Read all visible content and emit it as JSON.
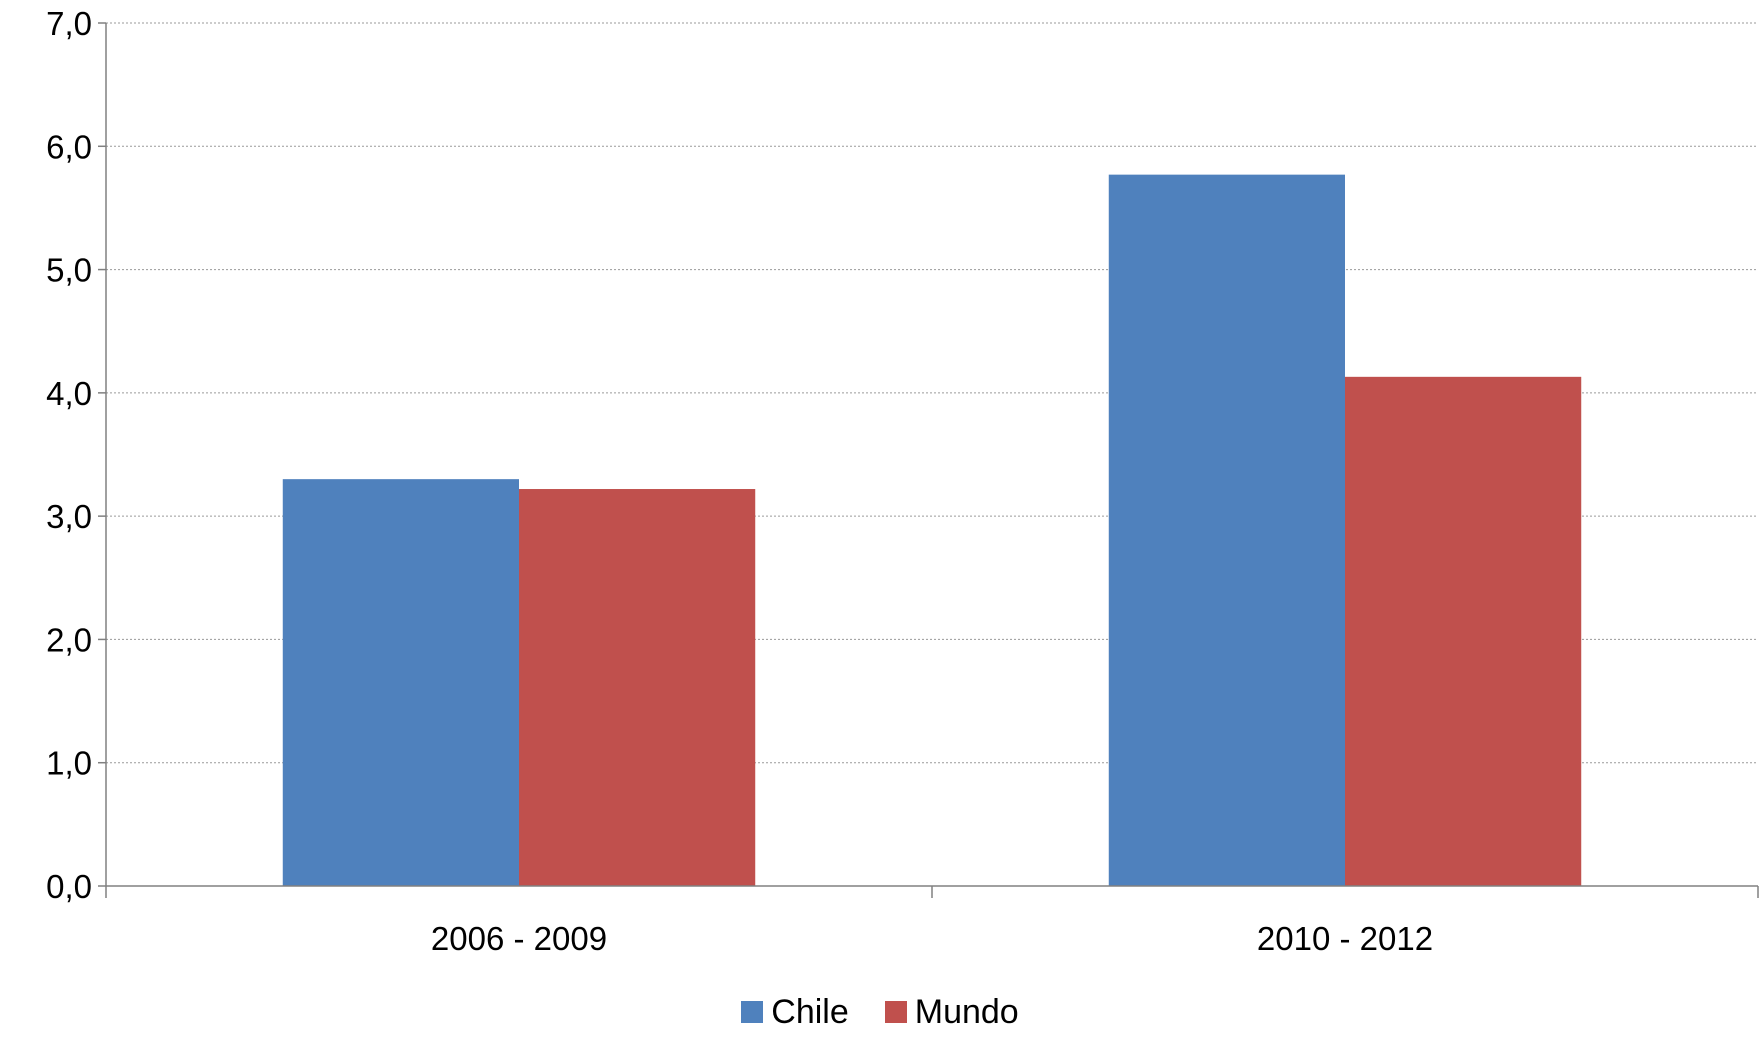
{
  "chart_data": {
    "type": "bar",
    "categories": [
      "2006 - 2009",
      "2010 - 2012"
    ],
    "series": [
      {
        "name": "Chile",
        "values": [
          3.3,
          5.77
        ],
        "color": "#4F81BD"
      },
      {
        "name": "Mundo",
        "values": [
          3.22,
          4.13
        ],
        "color": "#C0504D"
      }
    ],
    "ylim": [
      0,
      7
    ],
    "yticks": [
      0,
      1,
      2,
      3,
      4,
      5,
      6,
      7
    ],
    "ytick_labels": [
      "0,0",
      "1,0",
      "2,0",
      "3,0",
      "4,0",
      "5,0",
      "6,0",
      "7,0"
    ],
    "grid": true,
    "legend_position": "bottom",
    "title": "",
    "xlabel": "",
    "ylabel": ""
  }
}
